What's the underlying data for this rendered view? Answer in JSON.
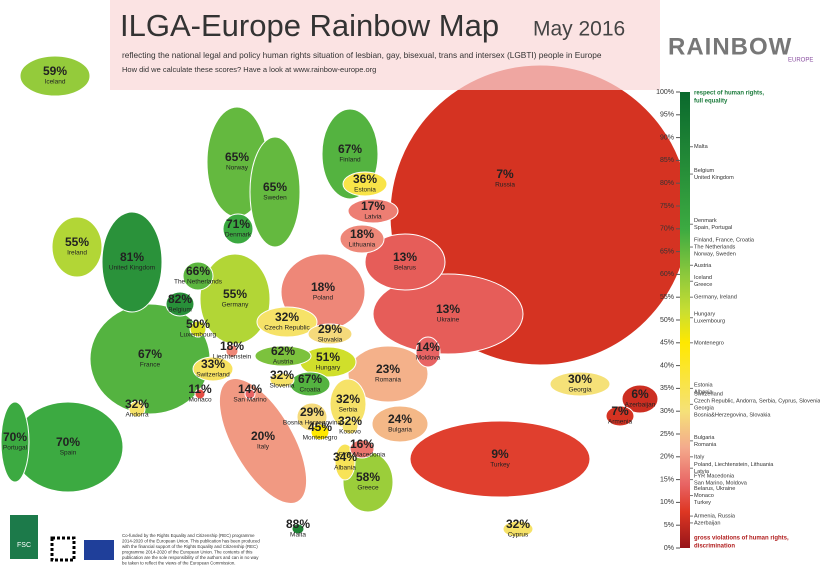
{
  "header": {
    "title": "ILGA-Europe Rainbow Map",
    "date": "May 2016",
    "subtitle": "reflecting the national legal and policy human rights situation of lesbian, gay, bisexual, trans and intersex (LGBTI) people in Europe",
    "note": "How did we calculate these scores? Have a look at www.rainbow-europe.org",
    "logo": "RAINBOW",
    "logo_sub": "EUROPE"
  },
  "countries": [
    {
      "name": "Iceland",
      "value": 59,
      "label": "59%"
    },
    {
      "name": "Norway",
      "value": 65,
      "label": "65%"
    },
    {
      "name": "Sweden",
      "value": 65,
      "label": "65%"
    },
    {
      "name": "Finland",
      "value": 67,
      "label": "67%"
    },
    {
      "name": "Russia",
      "value": 7,
      "label": "7%"
    },
    {
      "name": "Estonia",
      "value": 36,
      "label": "36%"
    },
    {
      "name": "Latvia",
      "value": 17,
      "label": "17%"
    },
    {
      "name": "Lithuania",
      "value": 18,
      "label": "18%"
    },
    {
      "name": "Belarus",
      "value": 13,
      "label": "13%"
    },
    {
      "name": "Denmark",
      "value": 71,
      "label": "71%"
    },
    {
      "name": "Ireland",
      "value": 55,
      "label": "55%"
    },
    {
      "name": "United Kingdom",
      "value": 81,
      "label": "81%"
    },
    {
      "name": "The Netherlands",
      "value": 66,
      "label": "66%"
    },
    {
      "name": "Belgium",
      "value": 82,
      "label": "82%"
    },
    {
      "name": "Luxembourg",
      "value": 50,
      "label": "50%"
    },
    {
      "name": "Germany",
      "value": 55,
      "label": "55%"
    },
    {
      "name": "Poland",
      "value": 18,
      "label": "18%"
    },
    {
      "name": "Ukraine",
      "value": 13,
      "label": "13%"
    },
    {
      "name": "Czech Republic",
      "value": 32,
      "label": "32%"
    },
    {
      "name": "Slovakia",
      "value": 29,
      "label": "29%"
    },
    {
      "name": "Moldova",
      "value": 14,
      "label": "14%"
    },
    {
      "name": "Hungary",
      "value": 51,
      "label": "51%"
    },
    {
      "name": "Austria",
      "value": 62,
      "label": "62%"
    },
    {
      "name": "Liechtenstein",
      "value": 18,
      "label": "18%"
    },
    {
      "name": "Switzerland",
      "value": 33,
      "label": "33%"
    },
    {
      "name": "France",
      "value": 67,
      "label": "67%"
    },
    {
      "name": "Slovenia",
      "value": 32,
      "label": "32%"
    },
    {
      "name": "Croatia",
      "value": 67,
      "label": "67%"
    },
    {
      "name": "Romania",
      "value": 23,
      "label": "23%"
    },
    {
      "name": "Bosnia Herzegovina",
      "value": 29,
      "label": "29%"
    },
    {
      "name": "Serbia",
      "value": 32,
      "label": "32%"
    },
    {
      "name": "Monaco",
      "value": 11,
      "label": "11%"
    },
    {
      "name": "San Marino",
      "value": 14,
      "label": "14%"
    },
    {
      "name": "Andorra",
      "value": 32,
      "label": "32%"
    },
    {
      "name": "Montenegro",
      "value": 45,
      "label": "45%"
    },
    {
      "name": "Kosovo",
      "value": 32,
      "label": "32%"
    },
    {
      "name": "Bulgaria",
      "value": 24,
      "label": "24%"
    },
    {
      "name": "FYR Macedonia",
      "value": 16,
      "label": "16%"
    },
    {
      "name": "Albania",
      "value": 34,
      "label": "34%"
    },
    {
      "name": "Italy",
      "value": 20,
      "label": "20%"
    },
    {
      "name": "Georgia",
      "value": 30,
      "label": "30%"
    },
    {
      "name": "Armenia",
      "value": 7,
      "label": "7%"
    },
    {
      "name": "Azerbaijan",
      "value": 6,
      "label": "6%"
    },
    {
      "name": "Portugal",
      "value": 70,
      "label": "70%"
    },
    {
      "name": "Spain",
      "value": 70,
      "label": "70%"
    },
    {
      "name": "Turkey",
      "value": 9,
      "label": "9%"
    },
    {
      "name": "Greece",
      "value": 58,
      "label": "58%"
    },
    {
      "name": "Malta",
      "value": 88,
      "label": "88%"
    },
    {
      "name": "Cyprus",
      "value": 32,
      "label": "32%"
    }
  ],
  "scale": {
    "top_note": [
      "respect of human rights,",
      "full equality"
    ],
    "bottom_note": [
      "gross violations of human rights,",
      "discrimination"
    ],
    "ticks": [
      {
        "value": 100,
        "label": "100%"
      },
      {
        "value": 95,
        "label": "95%"
      },
      {
        "value": 90,
        "label": "90%"
      },
      {
        "value": 85,
        "label": "85%"
      },
      {
        "value": 80,
        "label": "80%"
      },
      {
        "value": 75,
        "label": "75%"
      },
      {
        "value": 70,
        "label": "70%"
      },
      {
        "value": 65,
        "label": "65%"
      },
      {
        "value": 60,
        "label": "60%"
      },
      {
        "value": 55,
        "label": "55%"
      },
      {
        "value": 50,
        "label": "50%"
      },
      {
        "value": 45,
        "label": "45%"
      },
      {
        "value": 40,
        "label": "40%"
      },
      {
        "value": 35,
        "label": "35%"
      },
      {
        "value": 30,
        "label": "30%"
      },
      {
        "value": 25,
        "label": "25%"
      },
      {
        "value": 20,
        "label": "20%"
      },
      {
        "value": 15,
        "label": "15%"
      },
      {
        "value": 10,
        "label": "10%"
      },
      {
        "value": 5,
        "label": "5%"
      },
      {
        "value": 0,
        "label": "0%"
      }
    ],
    "annotations": [
      {
        "value": 88,
        "lines": [
          "Malta"
        ]
      },
      {
        "value": 82,
        "lines": [
          "Belgium",
          "United Kingdom"
        ]
      },
      {
        "value": 71,
        "lines": [
          "Denmark",
          "Spain, Portugal"
        ]
      },
      {
        "value": 66,
        "lines": [
          "Finland, France, Croatia",
          "The Netherlands",
          "Norway, Sweden"
        ]
      },
      {
        "value": 62,
        "lines": [
          "Austria"
        ]
      },
      {
        "value": 58.5,
        "lines": [
          "Iceland",
          "Greece"
        ]
      },
      {
        "value": 55,
        "lines": [
          "Germany, Ireland"
        ]
      },
      {
        "value": 50.5,
        "lines": [
          "Hungary",
          "Luxembourg"
        ]
      },
      {
        "value": 45,
        "lines": [
          "Montenegro"
        ]
      },
      {
        "value": 35,
        "lines": [
          "Estonia",
          "Albania"
        ]
      },
      {
        "value": 31.5,
        "lines": [
          "Switzerland",
          "Czech Republic, Andorra, Serbia, Cyprus, Slovenia, Kosovo*",
          "Georgia",
          "Bosnia&Herzegovina, Slovakia"
        ]
      },
      {
        "value": 23.5,
        "lines": [
          "Bulgaria",
          "Romania"
        ]
      },
      {
        "value": 20,
        "lines": [
          "Italy"
        ]
      },
      {
        "value": 17.5,
        "lines": [
          "Poland, Liechtenstein, Lithuania",
          "Latvia"
        ]
      },
      {
        "value": 15,
        "lines": [
          "FYR Macedonia",
          "San Marino, Moldova"
        ]
      },
      {
        "value": 11.5,
        "lines": [
          "Belarus, Ukraine",
          "Monaco",
          "Turkey"
        ]
      },
      {
        "value": 7,
        "lines": [
          "Armenia, Russia"
        ]
      },
      {
        "value": 5.5,
        "lines": [
          "Azerbaijan"
        ]
      }
    ]
  },
  "footer": {
    "fsc": "FSC",
    "eu_text": [
      "Co-funded by the Rights Equality and Citizenship (REC) programme",
      "2014-2020 of the European Union. This publication has been produced",
      "with the financial support of the Rights Equality and Citizenship (REC)",
      "programme 2014-2020 of the European Union. The contents of this",
      "publication are the sole responsibility of the authors and can in no way",
      "be taken to reflect the views of the European Commission."
    ]
  }
}
